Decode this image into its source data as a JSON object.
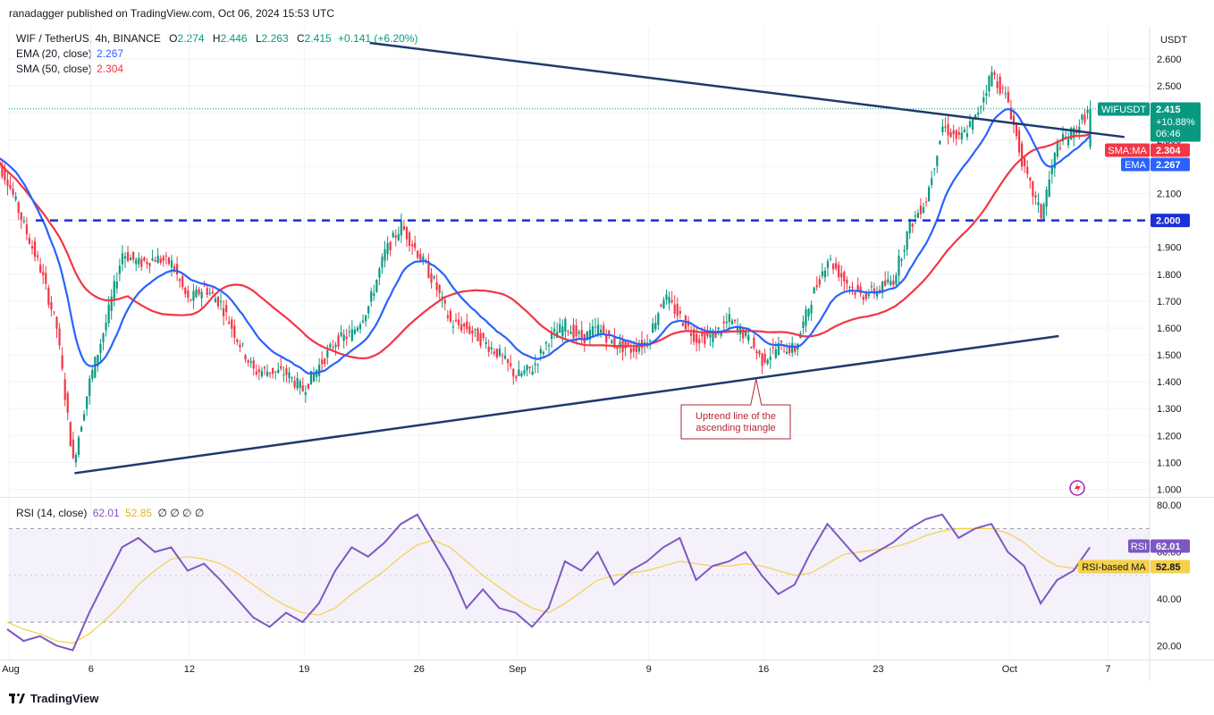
{
  "header": {
    "publisher": "ranadagger published on TradingView.com, Oct 06, 2024 15:53 UTC"
  },
  "legend": {
    "symbol": "WIF / TetherUS, 4h, BINANCE",
    "open_label": "O",
    "open": "2.274",
    "high_label": "H",
    "high": "2.446",
    "low_label": "L",
    "low": "2.263",
    "close_label": "C",
    "close": "2.415",
    "change": "+0.141 (+6.20%)",
    "ema_label": "EMA (20, close)",
    "ema_value": "2.267",
    "sma_label": "SMA (50, close)",
    "sma_value": "2.304"
  },
  "rsi_legend": {
    "label": "RSI (14, close)",
    "rsi": "62.01",
    "rsi_ma": "52.85",
    "extras": "∅ ∅ ∅ ∅"
  },
  "footer": {
    "brand": "TradingView"
  },
  "colors": {
    "up": "#089981",
    "down": "#f23645",
    "ema": "#2962ff",
    "sma": "#f23645",
    "trendline": "#1e3a6e",
    "support": "#1c2fd6",
    "rsi": "#7e57c2",
    "rsi_ma": "#f5d04a",
    "rsi_band": "#ede7f6",
    "callout_border": "#b22833",
    "callout_text": "#b22833"
  },
  "chart_data": [
    {
      "type": "candlestick",
      "title": "WIF / TetherUS, 4h, BINANCE",
      "y_axis_unit": "USDT",
      "ylim": [
        0.97,
        2.68
      ],
      "y_ticks": [
        "2.600",
        "2.500",
        "2.400",
        "2.300",
        "2.200",
        "2.100",
        "2.000",
        "1.900",
        "1.800",
        "1.700",
        "1.600",
        "1.500",
        "1.400",
        "1.300",
        "1.200",
        "1.100",
        "1.000"
      ],
      "x_ticks": [
        "Aug",
        "6",
        "12",
        "19",
        "26",
        "Sep",
        "9",
        "16",
        "23",
        "Oct",
        "7"
      ],
      "x_tick_dates": [
        "2024-08-01",
        "2024-08-06",
        "2024-08-12",
        "2024-08-19",
        "2024-08-26",
        "2024-09-01",
        "2024-09-09",
        "2024-09-16",
        "2024-09-23",
        "2024-10-01",
        "2024-10-07"
      ],
      "close_series": [
        [
          "2024-08-01",
          2.15
        ],
        [
          "2024-08-02",
          1.98
        ],
        [
          "2024-08-03",
          1.82
        ],
        [
          "2024-08-04",
          1.6
        ],
        [
          "2024-08-05",
          1.1
        ],
        [
          "2024-08-06",
          1.4
        ],
        [
          "2024-08-07",
          1.62
        ],
        [
          "2024-08-08",
          1.88
        ],
        [
          "2024-08-09",
          1.84
        ],
        [
          "2024-08-10",
          1.86
        ],
        [
          "2024-08-11",
          1.84
        ],
        [
          "2024-08-12",
          1.7
        ],
        [
          "2024-08-13",
          1.75
        ],
        [
          "2024-08-14",
          1.69
        ],
        [
          "2024-08-15",
          1.56
        ],
        [
          "2024-08-16",
          1.44
        ],
        [
          "2024-08-17",
          1.44
        ],
        [
          "2024-08-18",
          1.43
        ],
        [
          "2024-08-19",
          1.37
        ],
        [
          "2024-08-20",
          1.46
        ],
        [
          "2024-08-21",
          1.55
        ],
        [
          "2024-08-22",
          1.58
        ],
        [
          "2024-08-23",
          1.68
        ],
        [
          "2024-08-24",
          1.88
        ],
        [
          "2024-08-25",
          1.98
        ],
        [
          "2024-08-26",
          1.88
        ],
        [
          "2024-08-27",
          1.77
        ],
        [
          "2024-08-28",
          1.62
        ],
        [
          "2024-08-29",
          1.6
        ],
        [
          "2024-08-30",
          1.55
        ],
        [
          "2024-08-31",
          1.5
        ],
        [
          "2024-09-01",
          1.42
        ],
        [
          "2024-09-02",
          1.45
        ],
        [
          "2024-09-03",
          1.56
        ],
        [
          "2024-09-04",
          1.61
        ],
        [
          "2024-09-05",
          1.56
        ],
        [
          "2024-09-06",
          1.6
        ],
        [
          "2024-09-07",
          1.54
        ],
        [
          "2024-09-08",
          1.52
        ],
        [
          "2024-09-09",
          1.55
        ],
        [
          "2024-09-10",
          1.72
        ],
        [
          "2024-09-11",
          1.64
        ],
        [
          "2024-09-12",
          1.56
        ],
        [
          "2024-09-13",
          1.57
        ],
        [
          "2024-09-14",
          1.63
        ],
        [
          "2024-09-15",
          1.57
        ],
        [
          "2024-09-16",
          1.48
        ],
        [
          "2024-09-17",
          1.53
        ],
        [
          "2024-09-18",
          1.52
        ],
        [
          "2024-09-19",
          1.71
        ],
        [
          "2024-09-20",
          1.86
        ],
        [
          "2024-09-21",
          1.78
        ],
        [
          "2024-09-22",
          1.72
        ],
        [
          "2024-09-23",
          1.74
        ],
        [
          "2024-09-24",
          1.78
        ],
        [
          "2024-09-25",
          1.98
        ],
        [
          "2024-09-26",
          2.08
        ],
        [
          "2024-09-27",
          2.35
        ],
        [
          "2024-09-28",
          2.3
        ],
        [
          "2024-09-29",
          2.38
        ],
        [
          "2024-09-30",
          2.55
        ],
        [
          "2024-10-01",
          2.44
        ],
        [
          "2024-10-02",
          2.18
        ],
        [
          "2024-10-03",
          2.02
        ],
        [
          "2024-10-04",
          2.28
        ],
        [
          "2024-10-05",
          2.33
        ],
        [
          "2024-10-06",
          2.415
        ]
      ],
      "series": [
        {
          "name": "EMA (20, close)",
          "last": 2.267
        },
        {
          "name": "SMA (50, close)",
          "last": 2.304
        }
      ],
      "last_price": {
        "symbol_label": "WIFUSDT",
        "price": "2.415",
        "change_pct": "+10.88%",
        "countdown": "06:46"
      },
      "sma_tag": {
        "label": "SMA:MA",
        "value": "2.304"
      },
      "ema_tag": {
        "label": "EMA",
        "value": "2.267"
      },
      "support_level": {
        "value": 2.0,
        "label": "2.000"
      },
      "trendlines": [
        {
          "name": "descending resistance",
          "from": [
            "2024-08-23",
            2.66
          ],
          "to": [
            "2024-10-08",
            2.31
          ]
        },
        {
          "name": "uptrend line",
          "from": [
            "2024-08-05",
            1.06
          ],
          "to": [
            "2024-10-04",
            1.57
          ]
        }
      ],
      "annotations": [
        {
          "text_line1": "Uptrend line of the",
          "text_line2": "ascending triangle",
          "anchor": [
            "2024-09-15",
            1.41
          ]
        }
      ]
    },
    {
      "type": "line",
      "title": "RSI (14, close)",
      "ylim": [
        14,
        82
      ],
      "y_ticks": [
        "80.00",
        "60.00",
        "40.00",
        "20.00"
      ],
      "band": [
        30,
        70
      ],
      "series": [
        {
          "name": "RSI",
          "last": 62.01,
          "values": [
            27,
            22,
            24,
            20,
            18,
            34,
            48,
            62,
            66,
            60,
            62,
            52,
            55,
            48,
            40,
            32,
            28,
            34,
            30,
            38,
            52,
            62,
            58,
            64,
            72,
            76,
            64,
            52,
            36,
            44,
            36,
            34,
            28,
            36,
            56,
            52,
            60,
            46,
            52,
            56,
            62,
            66,
            48,
            54,
            56,
            60,
            50,
            42,
            46,
            60,
            72,
            64,
            56,
            60,
            64,
            70,
            74,
            76,
            66,
            70,
            72,
            60,
            54,
            38,
            48,
            52,
            62
          ]
        },
        {
          "name": "RSI-based MA",
          "last": 52.85,
          "values": [
            30,
            27,
            25,
            22,
            21,
            25,
            31,
            38,
            46,
            52,
            57,
            58,
            57,
            55,
            51,
            46,
            41,
            37,
            34,
            33,
            36,
            42,
            47,
            52,
            58,
            63,
            65,
            62,
            56,
            50,
            45,
            40,
            36,
            34,
            38,
            43,
            48,
            50,
            51,
            52,
            54,
            56,
            55,
            54,
            54,
            55,
            54,
            52,
            50,
            51,
            55,
            59,
            60,
            61,
            62,
            64,
            67,
            69,
            70,
            70,
            70,
            68,
            64,
            58,
            54,
            53,
            52.85
          ]
        }
      ],
      "rsi_tag": {
        "label": "RSI",
        "value": "62.01"
      },
      "ma_tag": {
        "label": "RSI-based MA",
        "value": "52.85"
      }
    }
  ]
}
